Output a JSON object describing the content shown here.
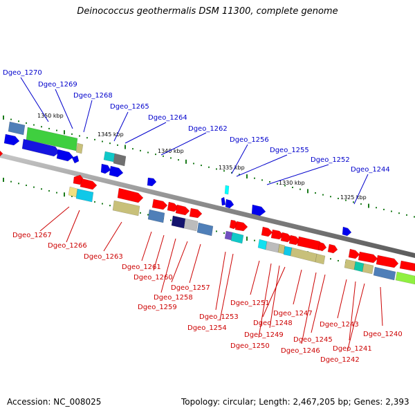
{
  "title": "Deinococcus geothermalis DSM 11300, complete genome",
  "footer": {
    "accession": "Accession: NC_008025",
    "summary": "Topology: circular; Length: 2,467,205 bp; Genes: 2,393"
  },
  "scale_labels": [
    "1350 kbp",
    "1345 kbp",
    "1340 kbp",
    "1335 kbp",
    "1330 kbp",
    "1325 kbp"
  ],
  "colors": {
    "plus_strand_label": "#0000cc",
    "minus_strand_label": "#cc0000",
    "backbone": "#8a8a8a"
  },
  "genes_top": [
    "Dgeo_1270",
    "Dgeo_1269",
    "Dgeo_1268",
    "Dgeo_1265",
    "Dgeo_1264",
    "Dgeo_1262",
    "Dgeo_1256",
    "Dgeo_1255",
    "Dgeo_1252",
    "Dgeo_1244"
  ],
  "genes_bottom": [
    "Dgeo_1267",
    "Dgeo_1266",
    "Dgeo_1263",
    "Dgeo_1261",
    "Dgeo_1260",
    "Dgeo_1258",
    "Dgeo_1259",
    "Dgeo_1257",
    "Dgeo_1253",
    "Dgeo_1254",
    "Dgeo_1251",
    "Dgeo_1250",
    "Dgeo_1249",
    "Dgeo_1248",
    "Dgeo_1247",
    "Dgeo_1246",
    "Dgeo_1245",
    "Dgeo_1243",
    "Dgeo_1242",
    "Dgeo_1241",
    "Dgeo_1240"
  ]
}
